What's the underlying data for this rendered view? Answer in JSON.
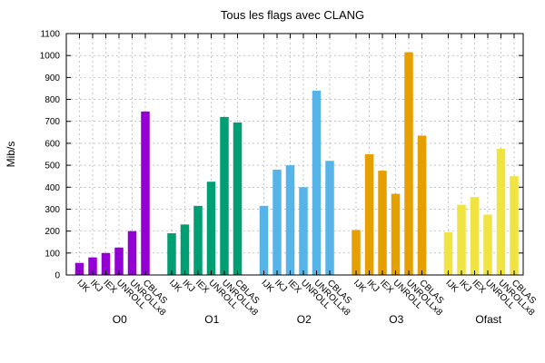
{
  "chart_data": {
    "type": "bar",
    "title": "Tous les flags avec CLANG",
    "xlabel": "",
    "ylabel": "Mib/s",
    "ylim": [
      0,
      1100
    ],
    "yticks": [
      0,
      100,
      200,
      300,
      400,
      500,
      600,
      700,
      800,
      900,
      1000,
      1100
    ],
    "grid": true,
    "categories": [
      "IJK",
      "IKJ",
      "IEX",
      "UNROLL",
      "UNROLLx8",
      "CBLAS"
    ],
    "series": [
      {
        "name": "O0",
        "color": "#9400d3",
        "values": [
          55,
          80,
          100,
          125,
          200,
          745
        ]
      },
      {
        "name": "O1",
        "color": "#009e73",
        "values": [
          190,
          230,
          315,
          425,
          720,
          695
        ]
      },
      {
        "name": "O2",
        "color": "#56b4e9",
        "values": [
          315,
          480,
          500,
          400,
          840,
          520
        ]
      },
      {
        "name": "O3",
        "color": "#e69f00",
        "values": [
          205,
          550,
          475,
          370,
          1015,
          635
        ]
      },
      {
        "name": "Ofast",
        "color": "#f0e442",
        "values": [
          195,
          320,
          355,
          275,
          575,
          450
        ]
      }
    ]
  }
}
